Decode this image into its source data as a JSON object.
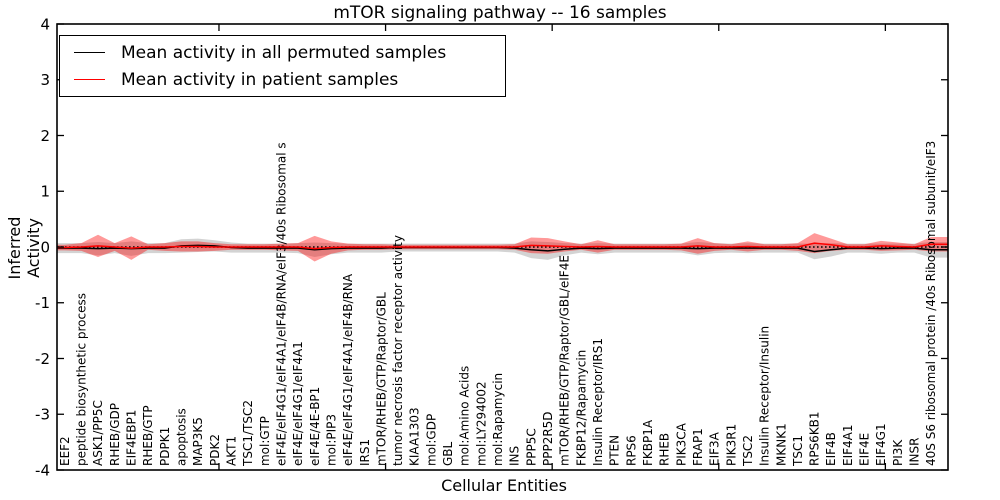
{
  "title": "mTOR signaling pathway -- 16 samples",
  "axes": {
    "xlabel": "Cellular Entities",
    "ylabel": "Inferred Activity"
  },
  "legend": {
    "items": [
      {
        "label": "Mean activity in all permuted samples",
        "color": "#000000"
      },
      {
        "label": "Mean activity in patient samples",
        "color": "#ff0000"
      }
    ]
  },
  "chart_data": {
    "type": "line",
    "title": "mTOR signaling pathway -- 16 samples",
    "xlabel": "Cellular Entities",
    "ylabel": "Inferred Activity",
    "ylim": [
      -4,
      4
    ],
    "yticks": [
      4,
      3,
      2,
      1,
      0,
      -1,
      -2,
      -3,
      -4
    ],
    "xticks": [
      10,
      20,
      30,
      40,
      50
    ],
    "grid": false,
    "legend_position": "upper left",
    "zero_reference_line": 0,
    "categories": [
      "EEF2",
      "peptide biosynthetic process",
      "ASK1/PP5C",
      "RHEB/GDP",
      "EIF4EBP1",
      "RHEB/GTP",
      "PDPK1",
      "apoptosis",
      "MAP3K5",
      "PDK2",
      "AKT1",
      "TSC1/TSC2",
      "mol:GTP",
      "eIF4E/eIF4G1/eIF4A1/eIF4B/RNA/eIF3/40s Ribosomal s",
      "eIF4E/eIF4G1/eIF4A1",
      "eIF4E/4E-BP1",
      "mol:PIP3",
      "eIF4E/eIF4G1/eIF4A1/eIF4B/RNA",
      "IRS1",
      "mTOR/RHEB/GTP/Raptor/GBL",
      "tumor necrosis factor receptor activity",
      "KIAA1303",
      "mol:GDP",
      "GBL",
      "mol:Amino Acids",
      "mol:LY294002",
      "mol:Rapamycin",
      "INS",
      "PPP5C",
      "PPP2R5D",
      "mTOR/RHEB/GTP/Raptor/GBL/eIF4E",
      "FKBP12/Rapamycin",
      "Insulin Receptor/IRS1",
      "PTEN",
      "RPS6",
      "FKBP1A",
      "RHEB",
      "PIK3CA",
      "FRAP1",
      "EIF3A",
      "PIK3R1",
      "TSC2",
      "Insulin Receptor/Insulin",
      "MKNK1",
      "TSC1",
      "RPS6KB1",
      "EIF4B",
      "EIF4A1",
      "EIF4E",
      "EIF4G1",
      "PI3K",
      "INSR",
      "40S S6 ribosomal protein /40s Ribosomal subunit/eIF3"
    ],
    "series": [
      {
        "name": "Mean activity in all permuted samples",
        "color": "#000000",
        "line": "solid",
        "values": [
          -0.02,
          -0.02,
          -0.03,
          -0.02,
          -0.03,
          -0.02,
          -0.02,
          0.02,
          0.03,
          0.02,
          -0.01,
          -0.02,
          -0.02,
          -0.02,
          -0.02,
          -0.05,
          -0.03,
          -0.02,
          -0.02,
          -0.02,
          -0.01,
          -0.01,
          -0.01,
          -0.01,
          -0.01,
          -0.01,
          -0.01,
          -0.02,
          -0.05,
          -0.07,
          -0.04,
          -0.02,
          -0.03,
          -0.02,
          -0.02,
          -0.02,
          -0.02,
          -0.02,
          -0.03,
          -0.02,
          -0.02,
          -0.02,
          -0.02,
          -0.02,
          -0.02,
          -0.08,
          -0.05,
          -0.02,
          -0.02,
          -0.03,
          -0.02,
          -0.02,
          -0.05
        ]
      },
      {
        "name": "Mean activity in patient samples",
        "color": "#ff0000",
        "line": "solid",
        "values": [
          -0.01,
          0.0,
          0.02,
          0.0,
          -0.02,
          0.0,
          0.0,
          0.01,
          0.01,
          0.0,
          0.0,
          0.0,
          0.0,
          0.0,
          0.0,
          -0.03,
          -0.01,
          0.0,
          0.0,
          0.0,
          0.0,
          0.0,
          0.0,
          0.0,
          0.0,
          0.0,
          0.0,
          0.0,
          0.03,
          0.02,
          0.01,
          0.0,
          0.01,
          0.0,
          0.0,
          0.0,
          0.0,
          0.0,
          0.02,
          0.0,
          0.0,
          0.01,
          0.0,
          0.0,
          0.0,
          0.07,
          0.04,
          0.0,
          0.0,
          0.02,
          0.01,
          0.0,
          0.05
        ]
      }
    ],
    "bands": [
      {
        "name": "permuted samples range",
        "color": "#808080",
        "opacity": 0.35,
        "center_series": 0,
        "spread": [
          0.09,
          0.09,
          0.12,
          0.09,
          0.13,
          0.09,
          0.09,
          0.12,
          0.12,
          0.1,
          0.09,
          0.08,
          0.08,
          0.08,
          0.09,
          0.13,
          0.1,
          0.08,
          0.08,
          0.08,
          0.07,
          0.07,
          0.07,
          0.07,
          0.07,
          0.07,
          0.07,
          0.08,
          0.15,
          0.16,
          0.11,
          0.08,
          0.1,
          0.08,
          0.08,
          0.08,
          0.08,
          0.08,
          0.12,
          0.09,
          0.08,
          0.09,
          0.08,
          0.08,
          0.08,
          0.14,
          0.12,
          0.08,
          0.08,
          0.09,
          0.08,
          0.08,
          0.14
        ]
      },
      {
        "name": "patient samples range",
        "color": "#ff0000",
        "opacity": 0.4,
        "center_series": 1,
        "spread": [
          0.05,
          0.07,
          0.2,
          0.07,
          0.21,
          0.05,
          0.07,
          0.09,
          0.09,
          0.07,
          0.05,
          0.05,
          0.05,
          0.06,
          0.07,
          0.23,
          0.11,
          0.06,
          0.05,
          0.05,
          0.04,
          0.04,
          0.04,
          0.04,
          0.04,
          0.04,
          0.04,
          0.05,
          0.14,
          0.14,
          0.09,
          0.05,
          0.11,
          0.05,
          0.05,
          0.05,
          0.05,
          0.06,
          0.14,
          0.07,
          0.05,
          0.09,
          0.05,
          0.05,
          0.07,
          0.18,
          0.11,
          0.05,
          0.05,
          0.09,
          0.07,
          0.05,
          0.13
        ]
      }
    ]
  },
  "colors": {
    "patient": "#ff0000",
    "permuted": "#000000",
    "background": "#ffffff"
  }
}
